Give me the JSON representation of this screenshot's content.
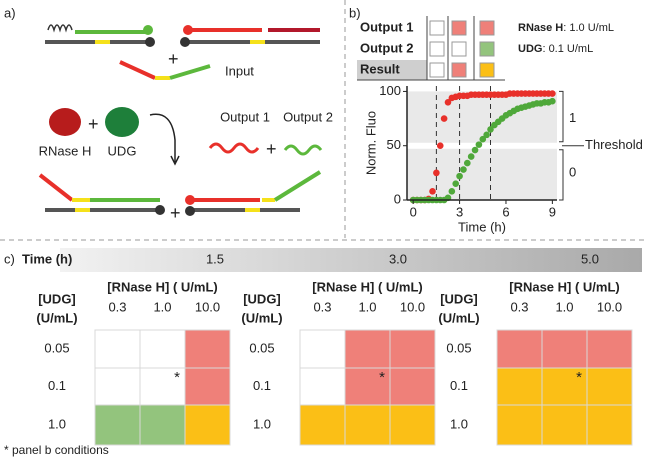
{
  "panel_a": {
    "label": "a)",
    "plus_1": "+",
    "input": "Input",
    "enzyme_1": "RNase H",
    "plus_2": "+",
    "enzyme_2": "UDG",
    "output_1": "Output 1",
    "plus_3": "+",
    "output_2": "Output 2",
    "plus_4": "+"
  },
  "panel_b": {
    "label": "b)",
    "rows": [
      {
        "name": "Output 1",
        "colors": [
          "#ffffff",
          "#ef8079",
          "#ef8079"
        ]
      },
      {
        "name": "Output 2",
        "colors": [
          "#ffffff",
          "#ffffff",
          "#93c47d"
        ]
      },
      {
        "name": "Result",
        "colors": [
          "#ffffff",
          "#ef8079",
          "#fbbf16"
        ]
      }
    ],
    "conditions": [
      {
        "name": "RNase H",
        "value": ": 1.0 U/mL"
      },
      {
        "name": "UDG",
        "value": ": 0.1 U/mL"
      }
    ],
    "threshold_label": "Threshold",
    "above": "1",
    "below": "0"
  },
  "chart_data": {
    "type": "scatter",
    "xlabel": "Time (h)",
    "ylabel": "Norm. Fluo",
    "x": [
      0,
      0.25,
      0.5,
      0.75,
      1,
      1.25,
      1.5,
      1.75,
      2,
      2.25,
      2.5,
      2.75,
      3,
      3.25,
      3.5,
      3.75,
      4,
      4.25,
      4.5,
      4.75,
      5,
      5.25,
      5.5,
      5.75,
      6,
      6.25,
      6.5,
      6.75,
      7,
      7.25,
      7.5,
      7.75,
      8,
      8.25,
      8.5,
      8.75,
      9
    ],
    "series": [
      {
        "name": "Output 1",
        "color": "#e8302a",
        "values": [
          0,
          0,
          0,
          0,
          1,
          8,
          25,
          50,
          75,
          90,
          94,
          95,
          96,
          96,
          96,
          97,
          97,
          97,
          97,
          97,
          97,
          97,
          97,
          97,
          97,
          98,
          98,
          98,
          98,
          98,
          98,
          98,
          98,
          98,
          98,
          98,
          98
        ]
      },
      {
        "name": "Output 2",
        "color": "#4fa83a",
        "values": [
          0,
          0,
          0,
          0,
          0,
          0,
          0,
          0,
          0,
          2,
          8,
          15,
          22,
          28,
          34,
          40,
          46,
          51,
          56,
          60,
          65,
          69,
          72,
          75,
          78,
          80,
          82,
          84,
          85,
          86,
          87,
          88,
          89,
          89,
          90,
          90,
          91
        ]
      }
    ],
    "xlim": [
      -0.4,
      9.3
    ],
    "ylim": [
      0,
      105
    ],
    "xticks": [
      0,
      3,
      6,
      9
    ],
    "yticks": [
      0,
      50,
      100
    ],
    "vlines": [
      1.5,
      3,
      5
    ],
    "threshold": 50
  },
  "panel_c": {
    "label": "c)",
    "time_label": "Time (h)",
    "footnote": "* panel b conditions",
    "grids": [
      {
        "time": "1.5",
        "x_title": "[RNase H] ( U/mL)",
        "columns": [
          "0.3",
          "1.0",
          "10.0"
        ],
        "y_title": [
          "[UDG]",
          "(U/mL)"
        ],
        "rows": [
          "0.05",
          "0.1",
          "1.0"
        ],
        "cells": [
          [
            {
              "color": "#ffffff"
            },
            {
              "color": "#ffffff"
            },
            {
              "color": "#ef8079"
            }
          ],
          [
            {
              "color": "#ffffff"
            },
            {
              "color": "#ffffff",
              "label": "*"
            },
            {
              "color": "#ef8079"
            }
          ],
          [
            {
              "color": "#93c47d"
            },
            {
              "color": "#93c47d"
            },
            {
              "color": "#fbbf16"
            }
          ]
        ]
      },
      {
        "time": "3.0",
        "x_title": "[RNase H] ( U/mL)",
        "columns": [
          "0.3",
          "1.0",
          "10.0"
        ],
        "y_title": [
          "[UDG]",
          "(U/mL)"
        ],
        "rows": [
          "0.05",
          "0.1",
          "1.0"
        ],
        "cells": [
          [
            {
              "color": "#ffffff"
            },
            {
              "color": "#ef8079"
            },
            {
              "color": "#ef8079"
            }
          ],
          [
            {
              "color": "#ffffff"
            },
            {
              "color": "#ef8079",
              "label": "*"
            },
            {
              "color": "#ef8079"
            }
          ],
          [
            {
              "color": "#fbbf16"
            },
            {
              "color": "#fbbf16"
            },
            {
              "color": "#fbbf16"
            }
          ]
        ]
      },
      {
        "time": "5.0",
        "x_title": "[RNase H] ( U/mL)",
        "columns": [
          "0.3",
          "1.0",
          "10.0"
        ],
        "y_title": [
          "[UDG]",
          "(U/mL)"
        ],
        "rows": [
          "0.05",
          "0.1",
          "1.0"
        ],
        "cells": [
          [
            {
              "color": "#ef8079"
            },
            {
              "color": "#ef8079"
            },
            {
              "color": "#ef8079"
            }
          ],
          [
            {
              "color": "#fbbf16"
            },
            {
              "color": "#fbbf16",
              "label": "*"
            },
            {
              "color": "#fbbf16"
            }
          ],
          [
            {
              "color": "#fbbf16"
            },
            {
              "color": "#fbbf16"
            },
            {
              "color": "#fbbf16"
            }
          ]
        ]
      }
    ]
  }
}
